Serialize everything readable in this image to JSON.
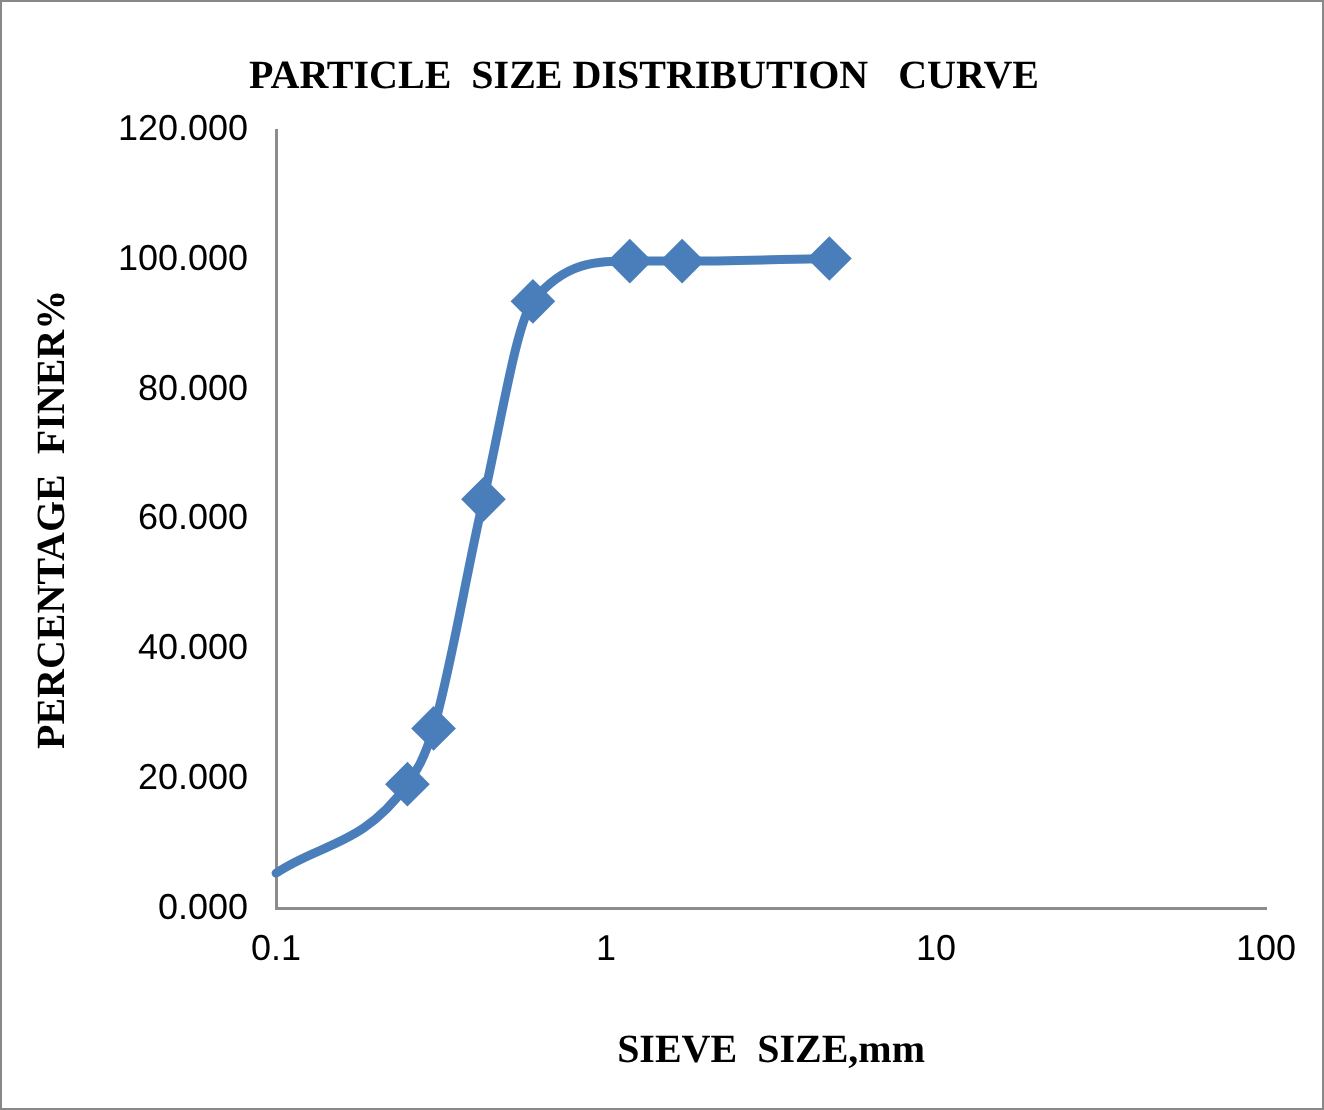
{
  "chart_data": {
    "type": "line",
    "title": "PARTICLE  SIZE DISTRIBUTION   CURVE",
    "xlabel": "SIEVE  SIZE,mm",
    "ylabel": "PERCENTAGE  FINER%",
    "x": [
      0.1,
      0.25,
      0.3,
      0.425,
      0.6,
      1.18,
      1.7,
      4.75
    ],
    "series": [
      {
        "color": "#4a7ebb",
        "values": [
          5.5,
          19.2,
          27.8,
          63.1,
          93.6,
          99.8,
          99.8,
          100.2
        ]
      }
    ],
    "log": "x",
    "xlim": [
      0.1,
      100
    ],
    "xticks": [
      0.1,
      1,
      10,
      100
    ],
    "ylim": [
      0,
      120
    ],
    "yticks": [
      {
        "value": 0,
        "label": "0.000"
      },
      {
        "value": 20,
        "label": "20.000"
      },
      {
        "value": 40,
        "label": "40.000"
      },
      {
        "value": 60,
        "label": "60.000"
      },
      {
        "value": 80,
        "label": "80.000"
      },
      {
        "value": 100,
        "label": "100.000"
      },
      {
        "value": 120,
        "label": "120.000"
      }
    ],
    "grid": false,
    "legend": false,
    "marker": "diamond",
    "line_style": "solid"
  }
}
